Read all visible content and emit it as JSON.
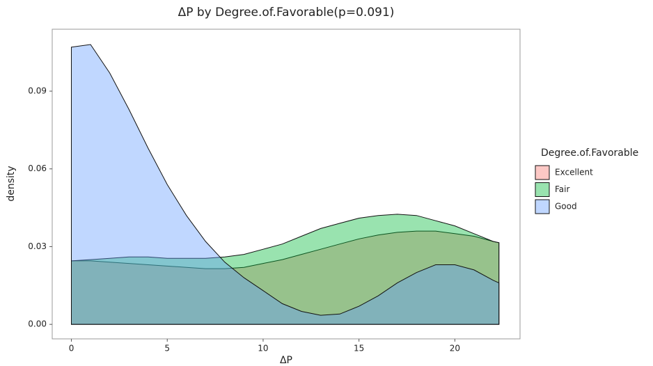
{
  "chart_data": {
    "type": "density",
    "title": "ΔP by Degree.of.Favorable(p=0.091)",
    "x_label": "ΔP",
    "y_label": "density",
    "x": [
      0,
      1,
      2,
      3,
      4,
      5,
      6,
      7,
      8,
      9,
      10,
      11,
      12,
      13,
      14,
      15,
      16,
      17,
      18,
      19,
      20,
      21,
      22,
      22.3
    ],
    "series": [
      {
        "name": "Excellent",
        "color": "#F8766D",
        "values": [
          0.0245,
          0.0245,
          0.024,
          0.0235,
          0.023,
          0.0225,
          0.022,
          0.0215,
          0.0215,
          0.022,
          0.0235,
          0.025,
          0.027,
          0.029,
          0.031,
          0.033,
          0.0345,
          0.0355,
          0.036,
          0.036,
          0.035,
          0.034,
          0.032,
          0.0315
        ]
      },
      {
        "name": "Fair",
        "color": "#00BA38",
        "values": [
          0.0245,
          0.025,
          0.0255,
          0.026,
          0.026,
          0.0255,
          0.0255,
          0.0255,
          0.026,
          0.027,
          0.029,
          0.031,
          0.034,
          0.037,
          0.039,
          0.041,
          0.042,
          0.0425,
          0.042,
          0.04,
          0.038,
          0.035,
          0.032,
          0.0315
        ]
      },
      {
        "name": "Good",
        "color": "#619CFF",
        "values": [
          0.107,
          0.108,
          0.097,
          0.083,
          0.068,
          0.054,
          0.042,
          0.032,
          0.024,
          0.018,
          0.013,
          0.008,
          0.005,
          0.0035,
          0.004,
          0.007,
          0.011,
          0.016,
          0.02,
          0.023,
          0.023,
          0.021,
          0.017,
          0.016
        ]
      }
    ],
    "legend_title": "Degree.of.Favorable",
    "legend": "right",
    "xlim": [
      -1,
      23.4
    ],
    "xticks": [
      0,
      5,
      10,
      15,
      20
    ],
    "ylim": [
      -0.0056,
      0.1139
    ],
    "yticks": [
      {
        "value": 0,
        "label": "0.00"
      },
      0.03,
      0.06,
      0.09
    ],
    "grid": false
  }
}
